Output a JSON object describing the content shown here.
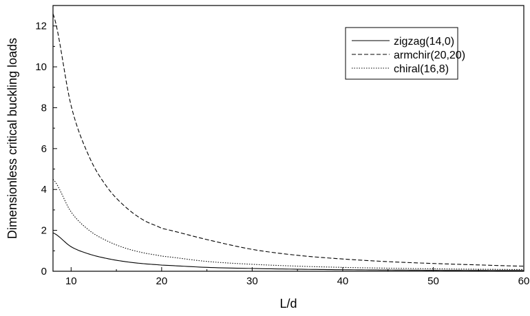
{
  "chart_data": {
    "type": "line",
    "title": "",
    "xlabel": "L/d",
    "ylabel": "Dimensionless critical buckling loads",
    "xlim": [
      8,
      60
    ],
    "ylim": [
      0,
      13
    ],
    "xticks": [
      10,
      20,
      30,
      40,
      50,
      60
    ],
    "yticks": [
      0,
      2,
      4,
      6,
      8,
      10,
      12
    ],
    "grid": false,
    "legend_position": "top-right",
    "series": [
      {
        "name": "zigzag(14,0)",
        "style": "solid",
        "color": "#000000",
        "x": [
          8,
          10,
          12,
          14,
          16,
          18,
          20,
          25,
          30,
          35,
          40,
          45,
          50,
          55,
          60
        ],
        "y": [
          1.88,
          1.2,
          0.84,
          0.62,
          0.47,
          0.37,
          0.3,
          0.19,
          0.135,
          0.1,
          0.076,
          0.06,
          0.048,
          0.04,
          0.034
        ]
      },
      {
        "name": "armchir(20,20)",
        "style": "dashed",
        "color": "#000000",
        "x": [
          8,
          10,
          12,
          14,
          16,
          18,
          20,
          25,
          30,
          35,
          40,
          45,
          50,
          55,
          60
        ],
        "y": [
          12.6,
          8.1,
          5.6,
          4.1,
          3.15,
          2.5,
          2.1,
          1.55,
          1.07,
          0.78,
          0.6,
          0.47,
          0.38,
          0.31,
          0.25
        ]
      },
      {
        "name": "chiral(16,8)",
        "style": "dotted",
        "color": "#000000",
        "x": [
          8,
          10,
          12,
          14,
          16,
          18,
          20,
          25,
          30,
          35,
          40,
          45,
          50,
          55,
          60
        ],
        "y": [
          4.5,
          2.9,
          2.0,
          1.48,
          1.13,
          0.9,
          0.74,
          0.48,
          0.34,
          0.25,
          0.19,
          0.15,
          0.12,
          0.1,
          0.085
        ]
      }
    ]
  }
}
